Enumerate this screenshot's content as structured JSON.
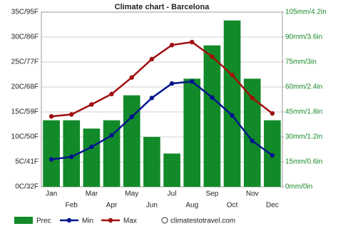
{
  "chart_data": {
    "type": "climate",
    "title": "Climate chart - Barcelona",
    "categories": [
      "Jan",
      "Feb",
      "Mar",
      "Apr",
      "May",
      "Jun",
      "Jul",
      "Aug",
      "Sep",
      "Oct",
      "Nov",
      "Dec"
    ],
    "series": [
      {
        "name": "Prec",
        "type": "bar",
        "axis": "y2",
        "color": "#128a2a",
        "values": [
          40,
          40,
          35,
          40,
          55,
          30,
          20,
          65,
          85,
          100,
          65,
          40
        ]
      },
      {
        "name": "Min",
        "type": "line",
        "color": "#00148c",
        "values": [
          5.5,
          6,
          8,
          10.3,
          14,
          17.8,
          20.7,
          21.1,
          17.9,
          14.3,
          9.2,
          6.3
        ]
      },
      {
        "name": "Max",
        "type": "line",
        "color": "#a01010",
        "values": [
          14.1,
          14.5,
          16.5,
          18.6,
          21.9,
          25.6,
          28.4,
          29,
          26.1,
          22.4,
          17.8,
          14.7
        ]
      }
    ],
    "ylim": [
      0,
      35
    ],
    "yticks": [
      {
        "value": 0,
        "label": "0C/32F"
      },
      {
        "value": 5,
        "label": "5C/41F"
      },
      {
        "value": 10,
        "label": "10C/50F"
      },
      {
        "value": 15,
        "label": "15C/59F"
      },
      {
        "value": 20,
        "label": "20C/68F"
      },
      {
        "value": 25,
        "label": "25C/77F"
      },
      {
        "value": 30,
        "label": "30C/86F"
      },
      {
        "value": 35,
        "label": "35C/95F"
      }
    ],
    "y2lim": [
      0,
      105
    ],
    "y2ticks": [
      {
        "value": 0,
        "label": "0mm/0in"
      },
      {
        "value": 15,
        "label": "15mm/0.6in"
      },
      {
        "value": 30,
        "label": "30mm/1.2in"
      },
      {
        "value": 45,
        "label": "45mm/1.8in"
      },
      {
        "value": 60,
        "label": "60mm/2.4in"
      },
      {
        "value": 75,
        "label": "75mm/3in"
      },
      {
        "value": 90,
        "label": "90mm/3.6in"
      },
      {
        "value": 105,
        "label": "105mm/4.2in"
      }
    ],
    "grid": true,
    "legend": "bottom",
    "watermark": "climatestotravel.com"
  }
}
